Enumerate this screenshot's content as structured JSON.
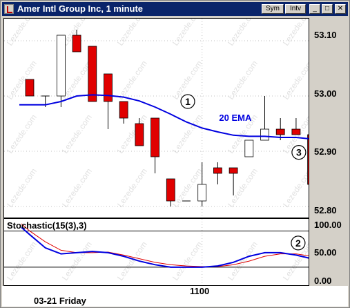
{
  "window": {
    "title": "Amer Intl Group Inc, 1 minute",
    "buttons": {
      "sym": "Sym",
      "intv": "Intv",
      "minimize": "_",
      "maximize": "□",
      "close": "✕"
    }
  },
  "watermark": "Lezede.com",
  "price_axis": {
    "labels": [
      "53.10",
      "53.00",
      "52.90",
      "52.80"
    ]
  },
  "stoch_axis": {
    "labels": [
      "100.00",
      "50.00",
      "0.00"
    ]
  },
  "indicator": {
    "label": "Stochastic(15(3),3)"
  },
  "annotations": {
    "ema_label": "20 EMA",
    "circle1": "1",
    "circle2": "2",
    "circle3": "3"
  },
  "time_axis": {
    "date_label": "03-21 Friday",
    "time_label": "1100"
  },
  "colors": {
    "up": "#ffffff",
    "down": "#e00000",
    "ema": "#0000e0",
    "stoch_k": "#0000e0",
    "stoch_d": "#e00000"
  },
  "chart_data": [
    {
      "type": "candlestick",
      "title": "Amer Intl Group Inc, 1 minute",
      "ylim": [
        52.78,
        53.14
      ],
      "y_ticks": [
        53.1,
        53.0,
        52.9,
        52.8
      ],
      "candles": [
        {
          "o": 53.03,
          "h": 53.03,
          "l": 53.0,
          "c": 53.0
        },
        {
          "o": 53.0,
          "h": 53.0,
          "l": 52.98,
          "c": 53.0
        },
        {
          "o": 53.0,
          "h": 53.11,
          "l": 52.98,
          "c": 53.11
        },
        {
          "o": 53.11,
          "h": 53.12,
          "l": 53.08,
          "c": 53.08
        },
        {
          "o": 53.09,
          "h": 53.09,
          "l": 52.99,
          "c": 52.99
        },
        {
          "o": 53.04,
          "h": 53.04,
          "l": 52.94,
          "c": 52.99
        },
        {
          "o": 52.99,
          "h": 52.99,
          "l": 52.95,
          "c": 52.96
        },
        {
          "o": 52.95,
          "h": 52.96,
          "l": 52.91,
          "c": 52.91
        },
        {
          "o": 52.96,
          "h": 52.96,
          "l": 52.86,
          "c": 52.89
        },
        {
          "o": 52.85,
          "h": 52.85,
          "l": 52.8,
          "c": 52.81
        },
        {
          "o": 52.81,
          "h": 52.81,
          "l": 52.81,
          "c": 52.81
        },
        {
          "o": 52.81,
          "h": 52.88,
          "l": 52.8,
          "c": 52.84
        },
        {
          "o": 52.87,
          "h": 52.88,
          "l": 52.84,
          "c": 52.86
        },
        {
          "o": 52.87,
          "h": 52.87,
          "l": 52.82,
          "c": 52.86
        },
        {
          "o": 52.89,
          "h": 52.92,
          "l": 52.89,
          "c": 52.92
        },
        {
          "o": 52.92,
          "h": 53.0,
          "l": 52.92,
          "c": 52.94
        },
        {
          "o": 52.94,
          "h": 52.96,
          "l": 52.92,
          "c": 52.93
        },
        {
          "o": 52.94,
          "h": 52.96,
          "l": 52.93,
          "c": 52.93
        },
        {
          "o": 52.93,
          "h": 52.94,
          "l": 52.83,
          "c": 52.84
        }
      ],
      "ema": {
        "name": "20 EMA",
        "values": [
          52.984,
          52.984,
          52.99,
          53.0,
          53.002,
          53.001,
          52.998,
          52.991,
          52.98,
          52.967,
          52.953,
          52.942,
          52.935,
          52.929,
          52.927,
          52.927,
          52.925,
          52.925,
          52.922
        ]
      }
    },
    {
      "type": "line",
      "title": "Stochastic(15(3),3)",
      "ylim": [
        -10,
        100
      ],
      "y_ticks": [
        100,
        50,
        0
      ],
      "reference_lines": [
        80,
        20
      ],
      "series": [
        {
          "values": [
            74,
            52,
            42,
            44,
            46,
            44,
            38,
            30,
            24,
            20,
            20,
            20,
            22,
            28,
            38,
            44,
            44,
            40,
            34
          ]
        },
        {
          "values": [
            80,
            62,
            48,
            44,
            44,
            45,
            40,
            34,
            28,
            24,
            22,
            21,
            21,
            24,
            30,
            38,
            42,
            42,
            38
          ]
        }
      ]
    }
  ]
}
